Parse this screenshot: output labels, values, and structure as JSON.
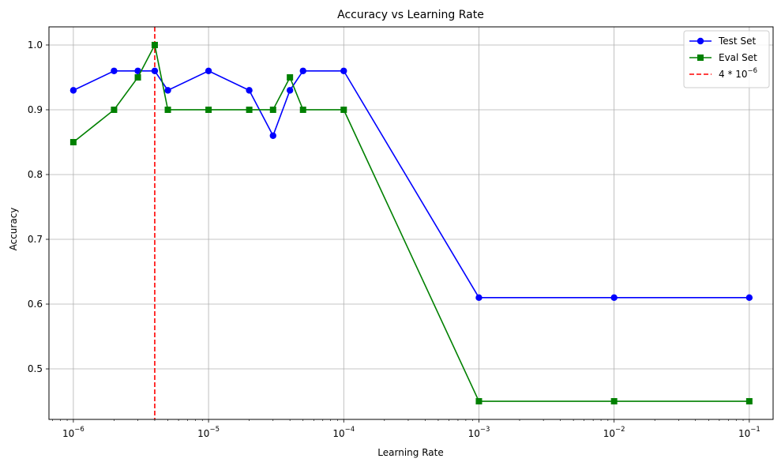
{
  "chart_data": {
    "type": "line",
    "title": "Accuracy vs Learning Rate",
    "xlabel": "Learning Rate",
    "ylabel": "Accuracy",
    "xscale": "log",
    "xlim": [
      6.6e-07,
      0.15
    ],
    "ylim": [
      0.422,
      1.028
    ],
    "grid": true,
    "legend_position": "top-right",
    "x_ticks": [
      {
        "value": 1e-06,
        "label": "10",
        "exp": "−6"
      },
      {
        "value": 1e-05,
        "label": "10",
        "exp": "−5"
      },
      {
        "value": 0.0001,
        "label": "10",
        "exp": "−4"
      },
      {
        "value": 0.001,
        "label": "10",
        "exp": "−3"
      },
      {
        "value": 0.01,
        "label": "10",
        "exp": "−2"
      },
      {
        "value": 0.1,
        "label": "10",
        "exp": "−1"
      }
    ],
    "y_ticks": [
      0.5,
      0.6,
      0.7,
      0.8,
      0.9,
      1.0
    ],
    "x": [
      1e-06,
      2e-06,
      3e-06,
      4e-06,
      5e-06,
      1e-05,
      2e-05,
      3e-05,
      4e-05,
      5e-05,
      0.0001,
      0.001,
      0.01,
      0.1
    ],
    "series": [
      {
        "name": "Test Set",
        "color": "#0000ff",
        "marker": "circle",
        "values": [
          0.93,
          0.96,
          0.96,
          0.96,
          0.93,
          0.96,
          0.93,
          0.86,
          0.93,
          0.96,
          0.96,
          0.61,
          0.61,
          0.61
        ]
      },
      {
        "name": "Eval Set",
        "color": "#008000",
        "marker": "square",
        "values": [
          0.85,
          0.9,
          0.95,
          1.0,
          0.9,
          0.9,
          0.9,
          0.9,
          0.95,
          0.9,
          0.9,
          0.45,
          0.45,
          0.45
        ]
      }
    ],
    "vline": {
      "x": 4e-06,
      "color": "#ff0000",
      "style": "dashed",
      "label_base": "4 * 10",
      "label_exp": "−6"
    }
  }
}
